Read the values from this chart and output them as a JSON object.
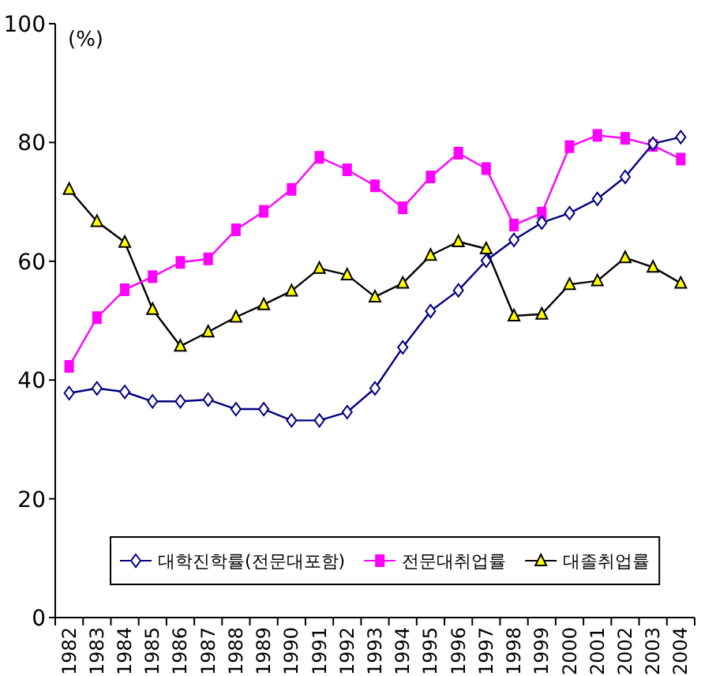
{
  "chart_data": {
    "type": "line",
    "annotations": [
      "(%)"
    ],
    "categories": [
      "1982",
      "1983",
      "1984",
      "1985",
      "1986",
      "1987",
      "1988",
      "1989",
      "1990",
      "1991",
      "1992",
      "1993",
      "1994",
      "1995",
      "1996",
      "1997",
      "1998",
      "1999",
      "2000",
      "2001",
      "2002",
      "2003",
      "2004"
    ],
    "series": [
      {
        "name": "대학진학률(전문대포함)",
        "color": "#000080",
        "marker": "diamond",
        "values": [
          37.8,
          38.6,
          38,
          36.4,
          36.4,
          36.7,
          35.1,
          35.1,
          33.2,
          33.2,
          34.6,
          38.6,
          45.5,
          51.6,
          55.1,
          60.1,
          63.6,
          66.5,
          68.1,
          70.5,
          74.2,
          79.8,
          80.9
        ]
      },
      {
        "name": "전문대취업률",
        "color": "#ff00ff",
        "marker": "square",
        "values": [
          42.3,
          50.5,
          55.2,
          57.4,
          59.8,
          60.4,
          65.3,
          68.4,
          72.1,
          77.5,
          75.4,
          72.7,
          69,
          74.2,
          78.2,
          75.6,
          66.1,
          68.1,
          79.3,
          81.2,
          80.7,
          79.5,
          77.2
        ]
      },
      {
        "name": "대졸취업률",
        "color": "#000000",
        "marker": "triangle",
        "values": [
          72.1,
          66.7,
          63.2,
          51.9,
          45.7,
          48.1,
          50.6,
          52.7,
          55,
          58.8,
          57.7,
          54,
          56.3,
          61,
          63.3,
          62.1,
          50.8,
          51.1,
          56.1,
          56.7,
          60.6,
          59,
          56.3
        ]
      }
    ],
    "ylim": [
      0,
      100
    ],
    "yticks": [
      0,
      20,
      40,
      60,
      80,
      100
    ],
    "grid": false,
    "legend": "bottom",
    "line_style": "solid"
  }
}
